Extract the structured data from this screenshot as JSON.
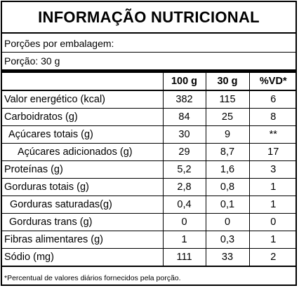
{
  "title": "INFORMAÇÃO NUTRICIONAL",
  "servings_per_package": "Porções por embalagem:",
  "serving_size": "Porção: 30 g",
  "columns": [
    "100 g",
    "30 g",
    "%VD*"
  ],
  "rows": [
    {
      "name": "Valor energético (kcal)",
      "per100": "382",
      "per_serving": "115",
      "dv": "6"
    },
    {
      "name": "Carboidratos (g)",
      "per100": "84",
      "per_serving": "25",
      "dv": "8"
    },
    {
      "name": "Açúcares totais (g)",
      "per100": "30",
      "per_serving": "9",
      "dv": "**"
    },
    {
      "name": "Açúcares adicionados (g)",
      "per100": "29",
      "per_serving": "8,7",
      "dv": "17"
    },
    {
      "name": "Proteínas (g)",
      "per100": "5,2",
      "per_serving": "1,6",
      "dv": "3"
    },
    {
      "name": "Gorduras totais (g)",
      "per100": "2,8",
      "per_serving": "0,8",
      "dv": "1"
    },
    {
      "name": "Gorduras saturadas(g)",
      "per100": "0,4",
      "per_serving": "0,1",
      "dv": "1"
    },
    {
      "name": "Gorduras trans (g)",
      "per100": "0",
      "per_serving": "0",
      "dv": "0"
    },
    {
      "name": "Fibras alimentares (g)",
      "per100": "1",
      "per_serving": "0,3",
      "dv": "1"
    },
    {
      "name": "Sódio (mg)",
      "per100": "111",
      "per_serving": "33",
      "dv": "2"
    }
  ],
  "footnote": "*Percentual de valores diários fornecidos pela porção."
}
